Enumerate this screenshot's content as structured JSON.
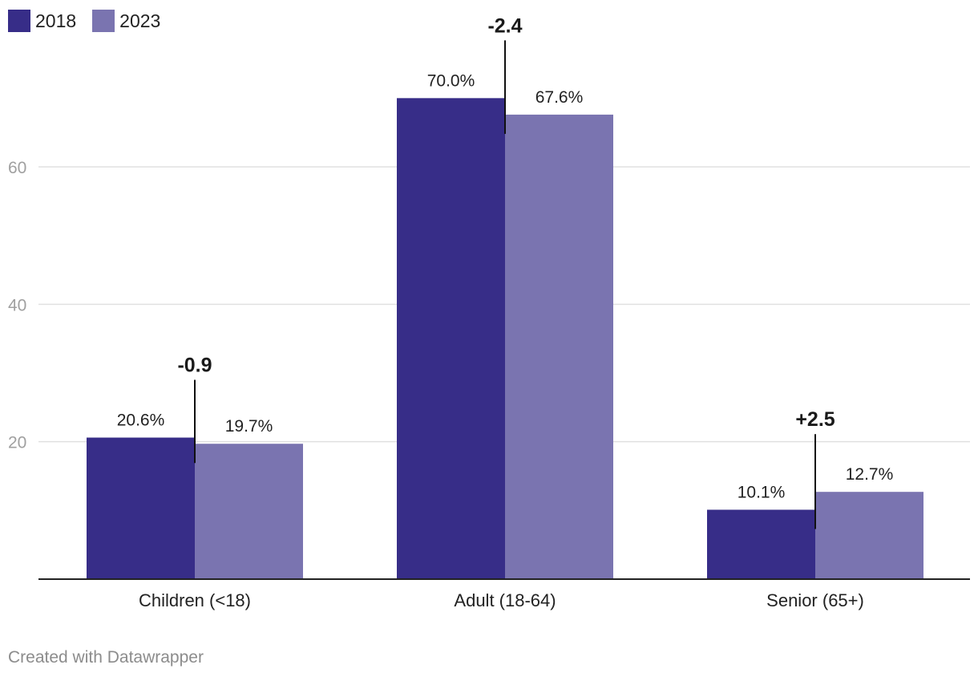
{
  "chart_data": {
    "type": "bar",
    "categories": [
      "Children (<18)",
      "Adult (18-64)",
      "Senior (65+)"
    ],
    "series": [
      {
        "name": "2018",
        "color": "#372d88",
        "values": [
          20.6,
          70.0,
          10.1
        ],
        "labels": [
          "20.6%",
          "70.0%",
          "10.1%"
        ]
      },
      {
        "name": "2023",
        "color": "#7a74b0",
        "values": [
          19.7,
          67.6,
          12.7
        ],
        "labels": [
          "19.7%",
          "67.6%",
          "12.7%"
        ]
      }
    ],
    "change_labels": [
      "-0.9",
      "-2.4",
      "+2.5"
    ],
    "ylim": [
      0,
      80
    ],
    "yticks": [
      20,
      40,
      60
    ],
    "grid": true,
    "legend_position": "top-left",
    "title": "",
    "xlabel": "",
    "ylabel": ""
  },
  "footer": {
    "credit": "Created with Datawrapper"
  }
}
